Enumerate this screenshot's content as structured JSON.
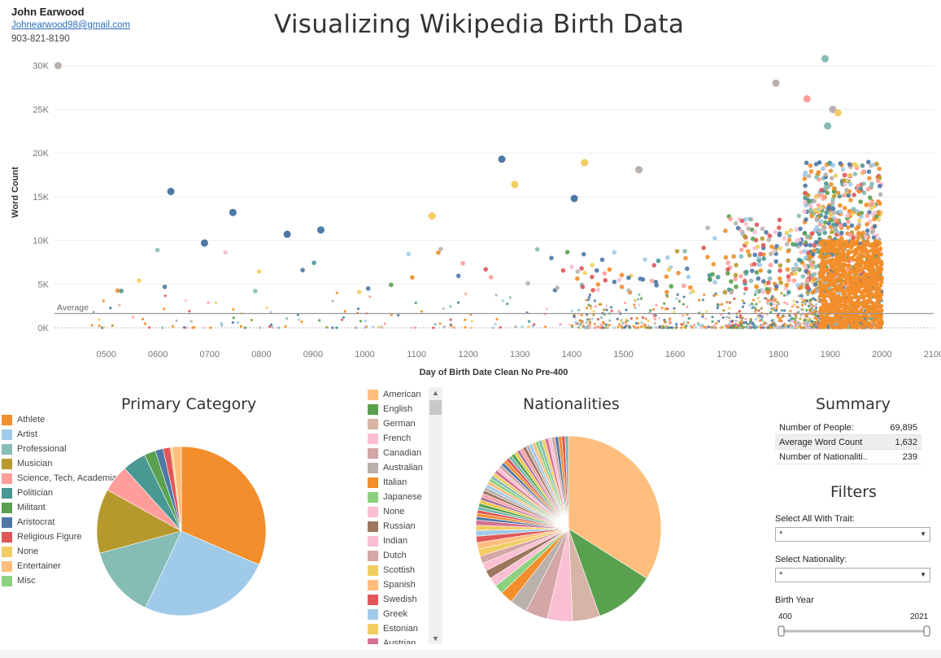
{
  "author": {
    "name": "John Earwood",
    "email": "Johnearwood98@gmail.com",
    "phone": "903-821-8190"
  },
  "page_title": "Visualizing Wikipedia Birth Data",
  "sections": {
    "category": "Primary Category",
    "nationalities": "Nationalities",
    "summary": "Summary",
    "filters": "Filters"
  },
  "summary_rows": [
    {
      "label": "Number of People:",
      "value": "69,895"
    },
    {
      "label": "Average Word Count",
      "value": "1,632"
    },
    {
      "label": "Number of Nationaliti..",
      "value": "239"
    }
  ],
  "filters": {
    "trait_label": "Select All With Trait:",
    "trait_value": "*",
    "nat_label": "Select Nationality:",
    "nat_value": "*",
    "year_label": "Birth Year",
    "year_min": "400",
    "year_max": "2021",
    "range": [
      400,
      2021
    ]
  },
  "chart_data": [
    {
      "type": "scatter",
      "title": "",
      "xlabel": "Day of Birth Date Clean No Pre-400",
      "ylabel": "Word Count",
      "xlim": [
        400,
        2100
      ],
      "ylim": [
        0,
        31000
      ],
      "x_ticks": [
        "0500",
        "0600",
        "0700",
        "0800",
        "0900",
        "1000",
        "1100",
        "1200",
        "1300",
        "1400",
        "1500",
        "1600",
        "1700",
        "1800",
        "1900",
        "2000",
        "2100"
      ],
      "y_ticks": [
        "0K",
        "5K",
        "10K",
        "15K",
        "20K",
        "25K",
        "30K"
      ],
      "grid": true,
      "reference_line": {
        "label": "Average",
        "value": 1632
      },
      "highlight_points": [
        {
          "x": 407,
          "y": 30000,
          "category": "None"
        },
        {
          "x": 1890,
          "y": 30800,
          "category": "Professional"
        },
        {
          "x": 1795,
          "y": 28000,
          "category": "None"
        },
        {
          "x": 1855,
          "y": 26200,
          "category": "Science, Tech, Academia"
        },
        {
          "x": 1905,
          "y": 25000,
          "category": "None"
        },
        {
          "x": 1915,
          "y": 24600,
          "category": "Entertainer"
        },
        {
          "x": 1895,
          "y": 23100,
          "category": "Professional"
        },
        {
          "x": 1265,
          "y": 19300,
          "category": "Aristocrat"
        },
        {
          "x": 1425,
          "y": 18900,
          "category": "Entertainer"
        },
        {
          "x": 1530,
          "y": 18100,
          "category": "None"
        },
        {
          "x": 625,
          "y": 15600,
          "category": "Aristocrat"
        },
        {
          "x": 1405,
          "y": 14800,
          "category": "Aristocrat"
        },
        {
          "x": 745,
          "y": 13200,
          "category": "Aristocrat"
        },
        {
          "x": 1130,
          "y": 12800,
          "category": "Entertainer"
        },
        {
          "x": 1290,
          "y": 16400,
          "category": "Entertainer"
        },
        {
          "x": 850,
          "y": 10700,
          "category": "Aristocrat"
        },
        {
          "x": 915,
          "y": 11200,
          "category": "Aristocrat"
        },
        {
          "x": 690,
          "y": 9700,
          "category": "Aristocrat"
        }
      ],
      "point_density": "sparse before 1400, very dense 1800–2000 with word counts mostly below 10K"
    },
    {
      "type": "pie",
      "title": "Primary Category",
      "slices": [
        {
          "label": "Athlete",
          "value": 31.5,
          "color": "#f28e2b"
        },
        {
          "label": "Artist",
          "value": 25.5,
          "color": "#a0cbe8"
        },
        {
          "label": "Professional",
          "value": 13.8,
          "color": "#86bcb6"
        },
        {
          "label": "Musician",
          "value": 12.3,
          "color": "#b6992d"
        },
        {
          "label": "Science, Tech, Academia",
          "value": 5.2,
          "color": "#ff9d9a"
        },
        {
          "label": "Politician",
          "value": 4.5,
          "color": "#499894"
        },
        {
          "label": "Militant",
          "value": 2.2,
          "color": "#59a14f"
        },
        {
          "label": "Aristocrat",
          "value": 1.5,
          "color": "#4e79a7"
        },
        {
          "label": "Religious Figure",
          "value": 1.4,
          "color": "#e15759"
        },
        {
          "label": "None",
          "value": 0.4,
          "color": "#f1ce63"
        },
        {
          "label": "Entertainer",
          "value": 1.7,
          "color": "#ffbe7d"
        },
        {
          "label": "Misc",
          "value": 0.0,
          "color": "#8cd17d"
        }
      ]
    },
    {
      "type": "pie",
      "title": "Nationalities",
      "slices": [
        {
          "label": "American",
          "value": 34.0,
          "color": "#ffbe7d"
        },
        {
          "label": "English",
          "value": 10.5,
          "color": "#59a14f"
        },
        {
          "label": "German",
          "value": 4.8,
          "color": "#d7b5a6"
        },
        {
          "label": "French",
          "value": 4.4,
          "color": "#fabfd2"
        },
        {
          "label": "Canadian",
          "value": 3.9,
          "color": "#d4a6a6"
        },
        {
          "label": "Australian",
          "value": 3.0,
          "color": "#bab0ac"
        },
        {
          "label": "Italian",
          "value": 2.2,
          "color": "#f28e2b"
        },
        {
          "label": "Japanese",
          "value": 1.6,
          "color": "#8cd17d"
        },
        {
          "label": "None",
          "value": 1.6,
          "color": "#fabfd2"
        },
        {
          "label": "Russian",
          "value": 1.5,
          "color": "#9d7660"
        },
        {
          "label": "Indian",
          "value": 1.4,
          "color": "#fabfd2"
        },
        {
          "label": "Dutch",
          "value": 1.3,
          "color": "#d4a6a6"
        },
        {
          "label": "Scottish",
          "value": 1.2,
          "color": "#f1ce63"
        },
        {
          "label": "Spanish",
          "value": 1.2,
          "color": "#ffbe7d"
        },
        {
          "label": "Swedish",
          "value": 1.1,
          "color": "#e15759"
        },
        {
          "label": "Greek",
          "value": 1.0,
          "color": "#a0cbe8"
        },
        {
          "label": "Estonian",
          "value": 0.9,
          "color": "#f1ce63"
        },
        {
          "label": "Austrian",
          "value": 0.9,
          "color": "#d37295"
        }
      ],
      "remaining_share": 23.5
    }
  ],
  "colors": {
    "None": "#bab0ac",
    "Athlete": "#f28e2b",
    "Artist": "#a0cbe8",
    "Professional": "#86bcb6",
    "Musician": "#b6992d",
    "Science, Tech, Academia": "#ff9d9a",
    "Politician": "#499894",
    "Militant": "#59a14f",
    "Aristocrat": "#4e79a7",
    "Religious Figure": "#e15759",
    "Entertainer": "#f1ce63",
    "Misc": "#8cd17d"
  }
}
